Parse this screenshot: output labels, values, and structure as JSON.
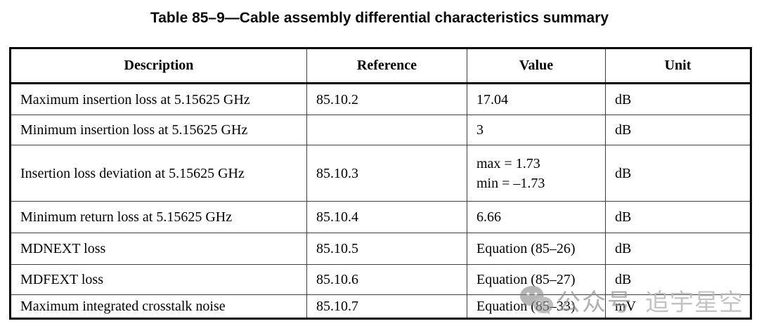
{
  "title": "Table 85–9—Cable assembly differential characteristics summary",
  "table": {
    "headers": [
      "Description",
      "Reference",
      "Value",
      "Unit"
    ],
    "rows": [
      {
        "description": "Maximum insertion loss at 5.15625 GHz",
        "reference": "85.10.2",
        "value": [
          "17.04"
        ],
        "unit": "dB"
      },
      {
        "description": "Minimum insertion loss at 5.15625 GHz",
        "reference": "",
        "value": [
          "3"
        ],
        "unit": "dB"
      },
      {
        "description": "Insertion loss deviation at 5.15625 GHz",
        "reference": "85.10.3",
        "value": [
          "max = 1.73",
          "min = –1.73"
        ],
        "unit": "dB"
      },
      {
        "description": "Minimum return loss at 5.15625 GHz",
        "reference": "85.10.4",
        "value": [
          "6.66"
        ],
        "unit": "dB"
      },
      {
        "description": "MDNEXT loss",
        "reference": "85.10.5",
        "value": [
          "Equation (85–26)"
        ],
        "unit": "dB"
      },
      {
        "description": "MDFEXT loss",
        "reference": "85.10.6",
        "value": [
          "Equation (85–27)"
        ],
        "unit": "dB"
      },
      {
        "description": "Maximum integrated crosstalk noise",
        "reference": "85.10.7",
        "value": [
          "Equation (85–33)"
        ],
        "unit": "mV"
      }
    ]
  },
  "watermark": {
    "icon": "wechat-icon",
    "account_label": "公众号",
    "account_name": "追宇星空",
    "icon_color": "#8a8a8a",
    "label_color": "#969696",
    "name_color": "#b9b9b9"
  }
}
